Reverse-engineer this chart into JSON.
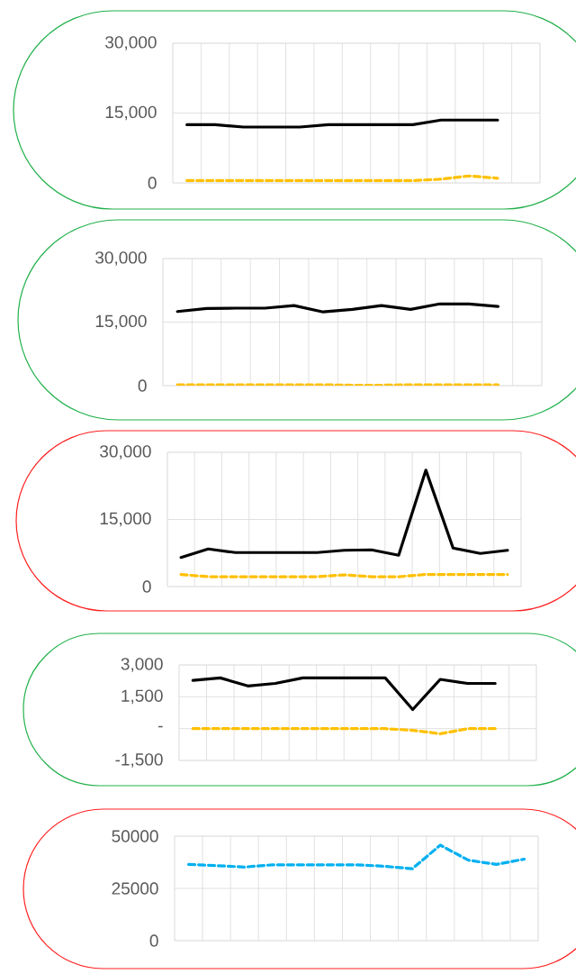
{
  "chart_data": [
    {
      "type": "line",
      "categories": [
        null,
        null,
        null,
        null,
        null,
        null,
        null,
        null,
        null,
        null,
        null,
        null,
        null
      ],
      "series": [
        {
          "color": "#000000",
          "line_style": "solid",
          "values": [
            12500,
            12500,
            12000,
            12000,
            12000,
            12500,
            12500,
            12500,
            12500,
            13500,
            13500,
            13500,
            null
          ]
        },
        {
          "color": "#ffc000",
          "line_style": "dashed",
          "values": [
            500,
            500,
            500,
            500,
            500,
            500,
            500,
            500,
            500,
            800,
            1500,
            1000,
            null
          ]
        }
      ],
      "ylim": [
        0,
        30000
      ],
      "yticks": [
        {
          "value": 0,
          "label": "0"
        },
        {
          "value": 15000,
          "label": "15,000"
        },
        {
          "value": 30000,
          "label": "30,000"
        }
      ],
      "grid": true,
      "tick_labels": "y"
    },
    {
      "type": "line",
      "categories": [
        null,
        null,
        null,
        null,
        null,
        null,
        null,
        null,
        null,
        null,
        null,
        null,
        null
      ],
      "series": [
        {
          "color": "#000000",
          "line_style": "solid",
          "values": [
            17500,
            18200,
            18300,
            18300,
            18900,
            17400,
            18000,
            18900,
            18000,
            19300,
            19300,
            18700,
            null
          ]
        },
        {
          "color": "#ffc000",
          "line_style": "dashed",
          "values": [
            200,
            200,
            200,
            200,
            200,
            200,
            100,
            100,
            200,
            200,
            200,
            200,
            null
          ]
        }
      ],
      "ylim": [
        0,
        30000
      ],
      "yticks": [
        {
          "value": 0,
          "label": "0"
        },
        {
          "value": 15000,
          "label": "15,000"
        },
        {
          "value": 30000,
          "label": "30,000"
        }
      ],
      "grid": true,
      "tick_labels": "y"
    },
    {
      "type": "line",
      "categories": [
        null,
        null,
        null,
        null,
        null,
        null,
        null,
        null,
        null,
        null,
        null,
        null,
        null
      ],
      "series": [
        {
          "color": "#000000",
          "line_style": "solid",
          "values": [
            6500,
            8400,
            7600,
            7600,
            7600,
            7600,
            8100,
            8200,
            7000,
            26000,
            8600,
            7400,
            8100
          ]
        },
        {
          "color": "#ffc000",
          "line_style": "dashed",
          "values": [
            2700,
            2200,
            2200,
            2200,
            2200,
            2200,
            2600,
            2200,
            2200,
            2700,
            2700,
            2700,
            2700
          ]
        }
      ],
      "ylim": [
        0,
        30000
      ],
      "yticks": [
        {
          "value": 0,
          "label": "0"
        },
        {
          "value": 15000,
          "label": "15,000"
        },
        {
          "value": 30000,
          "label": "30,000"
        }
      ],
      "grid": true,
      "tick_labels": "y"
    },
    {
      "type": "line",
      "categories": [
        null,
        null,
        null,
        null,
        null,
        null,
        null,
        null,
        null,
        null,
        null,
        null,
        null
      ],
      "series": [
        {
          "color": "#000000",
          "line_style": "solid",
          "values": [
            2270,
            2390,
            2010,
            2130,
            2390,
            2390,
            2390,
            2390,
            900,
            2320,
            2130,
            2130,
            null
          ]
        },
        {
          "color": "#ffc000",
          "line_style": "dashed",
          "values": [
            0,
            0,
            0,
            0,
            0,
            0,
            0,
            0,
            -80,
            -240,
            0,
            0,
            null
          ]
        }
      ],
      "ylim": [
        -1500,
        3000
      ],
      "yticks": [
        {
          "value": -1500,
          "label": "-1,500"
        },
        {
          "value": 0,
          "label": "-"
        },
        {
          "value": 1500,
          "label": "1,500"
        },
        {
          "value": 3000,
          "label": "3,000"
        }
      ],
      "grid": true,
      "tick_labels": "y"
    },
    {
      "type": "line",
      "categories": [
        null,
        null,
        null,
        null,
        null,
        null,
        null,
        null,
        null,
        null,
        null,
        null,
        null
      ],
      "series": [
        {
          "color": "#00b0f0",
          "line_style": "dashed",
          "values": [
            36500,
            35900,
            35200,
            36300,
            36300,
            36300,
            36300,
            35600,
            34400,
            45700,
            38500,
            36500,
            39000
          ]
        }
      ],
      "ylim": [
        0,
        50000
      ],
      "yticks": [
        0,
        25000,
        50000
      ],
      "grid": true,
      "tick_labels": "y"
    }
  ]
}
